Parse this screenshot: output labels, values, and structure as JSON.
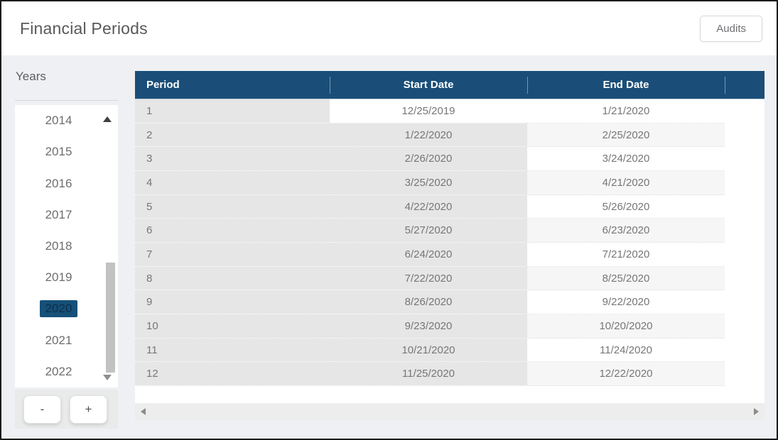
{
  "window": {
    "title": "Financial Periods",
    "audits_button": "Audits"
  },
  "years_panel": {
    "label": "Years",
    "years": [
      "2014",
      "2015",
      "2016",
      "2017",
      "2018",
      "2019",
      "2020",
      "2021",
      "2022"
    ],
    "selected_year": "2020",
    "minus_button": "-",
    "plus_button": "+"
  },
  "grid": {
    "columns": {
      "period": "Period",
      "start_date": "Start Date",
      "end_date": "End Date"
    },
    "rows": [
      {
        "period": "1",
        "start": "12/25/2019",
        "end": "1/21/2020"
      },
      {
        "period": "2",
        "start": "1/22/2020",
        "end": "2/25/2020"
      },
      {
        "period": "3",
        "start": "2/26/2020",
        "end": "3/24/2020"
      },
      {
        "period": "4",
        "start": "3/25/2020",
        "end": "4/21/2020"
      },
      {
        "period": "5",
        "start": "4/22/2020",
        "end": "5/26/2020"
      },
      {
        "period": "6",
        "start": "5/27/2020",
        "end": "6/23/2020"
      },
      {
        "period": "7",
        "start": "6/24/2020",
        "end": "7/21/2020"
      },
      {
        "period": "8",
        "start": "7/22/2020",
        "end": "8/25/2020"
      },
      {
        "period": "9",
        "start": "8/26/2020",
        "end": "9/22/2020"
      },
      {
        "period": "10",
        "start": "9/23/2020",
        "end": "10/20/2020"
      },
      {
        "period": "11",
        "start": "10/21/2020",
        "end": "11/24/2020"
      },
      {
        "period": "12",
        "start": "11/25/2020",
        "end": "12/22/2020"
      }
    ]
  },
  "colors": {
    "grid_header_bg": "#1a4e78",
    "selected_year_bg": "#155078",
    "selected_year_text": "#102e4a",
    "row_gray": "#e6e6e6",
    "row_shade": "#f6f6f7",
    "body_bg": "#eef0f3",
    "outer_border": "#1b1b1b"
  }
}
